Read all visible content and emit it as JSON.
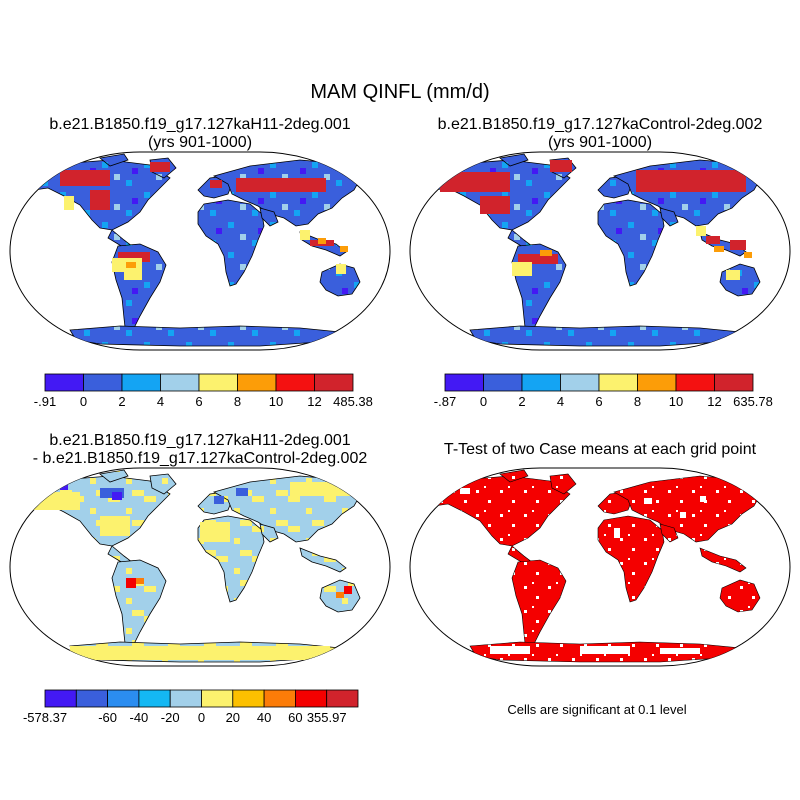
{
  "title": "MAM QINFL (mm/d)",
  "chart_data": [
    {
      "type": "map",
      "panel": "test-case",
      "title_lines": [
        "b.e21.B1850.f19_g17.127kaH11-2deg.001",
        "(yrs 901-1000)"
      ],
      "projection": "Robinson (global land field)",
      "colorbar": {
        "labels": [
          "-.91",
          "0",
          "2",
          "4",
          "6",
          "8",
          "10",
          "12",
          "485.38"
        ],
        "colors": [
          "#4319f4",
          "#3a5fdc",
          "#14a4f3",
          "#a2d0ea",
          "#fcf26e",
          "#fc9d08",
          "#f41111",
          "#d1232c"
        ]
      }
    },
    {
      "type": "map",
      "panel": "control-case",
      "title_lines": [
        "b.e21.B1850.f19_g17.127kaControl-2deg.002",
        "(yrs 901-1000)"
      ],
      "projection": "Robinson (global land field)",
      "colorbar": {
        "labels": [
          "-.87",
          "0",
          "2",
          "4",
          "6",
          "8",
          "10",
          "12",
          "635.78"
        ],
        "colors": [
          "#4319f4",
          "#3a5fdc",
          "#14a4f3",
          "#a2d0ea",
          "#fcf26e",
          "#fc9d08",
          "#f41111",
          "#d1232c"
        ]
      }
    },
    {
      "type": "map",
      "panel": "difference",
      "title_lines": [
        "b.e21.B1850.f19_g17.127kaH11-2deg.001",
        "- b.e21.B1850.f19_g17.127kaControl-2deg.002"
      ],
      "projection": "Robinson (global land field)",
      "colorbar": {
        "labels": [
          "-578.37",
          "",
          "-60",
          "-40",
          "-20",
          "0",
          "20",
          "40",
          "60",
          "355.97"
        ],
        "colors": [
          "#4319f4",
          "#3a5fdc",
          "#2b8df0",
          "#14b8f3",
          "#a2d0ea",
          "#fcf26e",
          "#fcc000",
          "#fc7c08",
          "#f40000",
          "#d1232c"
        ]
      }
    },
    {
      "type": "map",
      "panel": "significance",
      "title_lines": [
        "T-Test of two Case means at each grid point"
      ],
      "projection": "Robinson (global land field)",
      "caption": "Cells are significant at 0.1 level",
      "color": "#f40000"
    }
  ]
}
